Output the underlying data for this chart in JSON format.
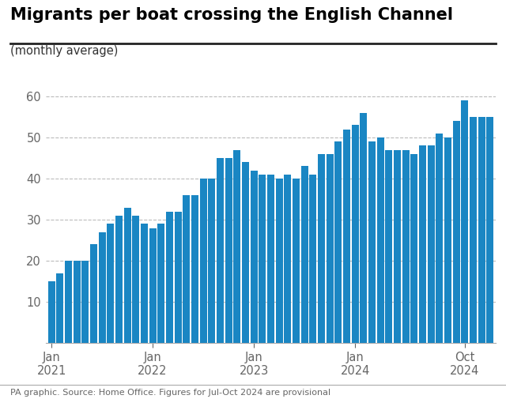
{
  "title": "Migrants per boat crossing the English Channel",
  "subtitle": "(monthly average)",
  "source_note": "PA graphic. Source: Home Office. Figures for Jul-Oct 2024 are provisional",
  "bar_color": "#1a86c3",
  "background_color": "#ffffff",
  "grid_color": "#bbbbbb",
  "values": [
    15,
    17,
    20,
    20,
    20,
    24,
    27,
    29,
    31,
    33,
    31,
    29,
    28,
    29,
    32,
    32,
    36,
    36,
    40,
    40,
    45,
    45,
    47,
    44,
    42,
    41,
    41,
    40,
    41,
    40,
    43,
    41,
    46,
    46,
    49,
    52,
    53,
    56,
    49,
    50,
    47,
    47,
    47,
    46,
    48,
    48,
    51,
    50,
    54,
    59,
    55,
    55,
    55
  ],
  "ylim": [
    0,
    65
  ],
  "yticks": [
    10,
    20,
    30,
    40,
    50,
    60
  ]
}
